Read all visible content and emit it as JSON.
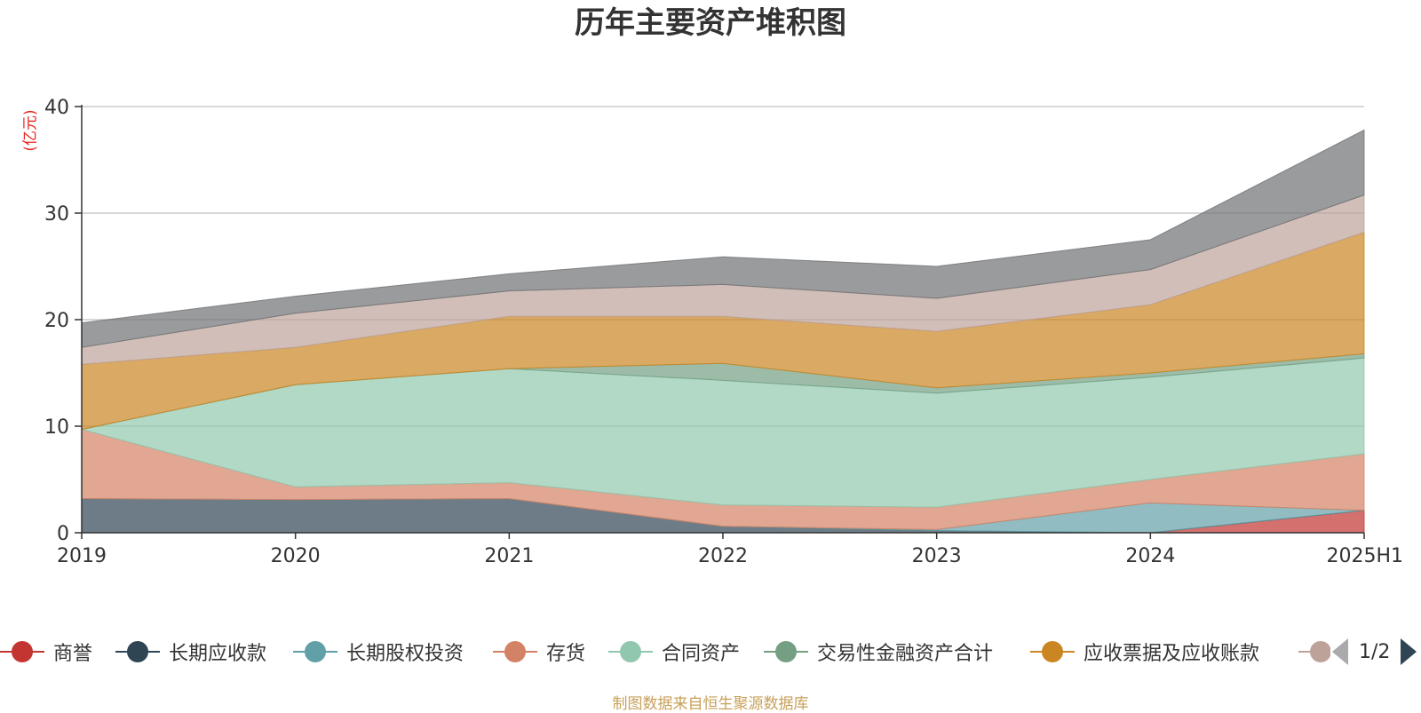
{
  "title": "历年主要资产堆积图",
  "unit": "(亿元)",
  "source": "制图数据来自恒生聚源数据库",
  "chart_data": {
    "type": "area",
    "stacked": true,
    "categories": [
      "2019",
      "2020",
      "2021",
      "2022",
      "2023",
      "2024",
      "2025H1"
    ],
    "ylim": [
      0,
      40
    ],
    "yticks": [
      0,
      10,
      20,
      30,
      40
    ],
    "ylabel": "(亿元)",
    "grid": true,
    "legend_position": "bottom",
    "series": [
      {
        "name": "商誉",
        "color": "#c23531",
        "values": [
          0,
          0,
          0,
          0,
          0,
          0,
          2.1
        ]
      },
      {
        "name": "长期应收款",
        "color": "#2f4554",
        "values": [
          3.2,
          3.1,
          3.2,
          0.6,
          0.2,
          0,
          0
        ]
      },
      {
        "name": "长期股权投资",
        "color": "#61a0a8",
        "values": [
          0,
          0,
          0,
          0,
          0.1,
          2.8,
          0
        ]
      },
      {
        "name": "存货",
        "color": "#d48265",
        "values": [
          6.5,
          1.2,
          1.5,
          2.0,
          2.1,
          2.2,
          5.3
        ]
      },
      {
        "name": "合同资产",
        "color": "#91c7ae",
        "values": [
          0,
          9.6,
          10.7,
          11.7,
          10.7,
          9.6,
          9.0
        ]
      },
      {
        "name": "交易性金融资产合计",
        "color": "#749f83",
        "values": [
          0,
          0,
          0,
          1.6,
          0.5,
          0.4,
          0.4
        ]
      },
      {
        "name": "应收票据及应收账款",
        "color": "#ca8622",
        "values": [
          6.1,
          3.5,
          4.9,
          4.4,
          5.3,
          6.4,
          11.4
        ]
      },
      {
        "name": "",
        "color": "#bda29a",
        "values": [
          1.6,
          3.2,
          2.4,
          3.0,
          3.1,
          3.3,
          3.5
        ]
      },
      {
        "name": "",
        "color": "#6e7074",
        "values": [
          2.3,
          1.6,
          1.6,
          2.6,
          3.0,
          2.8,
          6.1
        ]
      }
    ]
  },
  "legend": {
    "page": "1/2",
    "visible_items": [
      "商誉",
      "长期应收款",
      "长期股权投资",
      "存货",
      "合同资产",
      "交易性金融资产合计",
      "应收票据及应收账款"
    ]
  }
}
